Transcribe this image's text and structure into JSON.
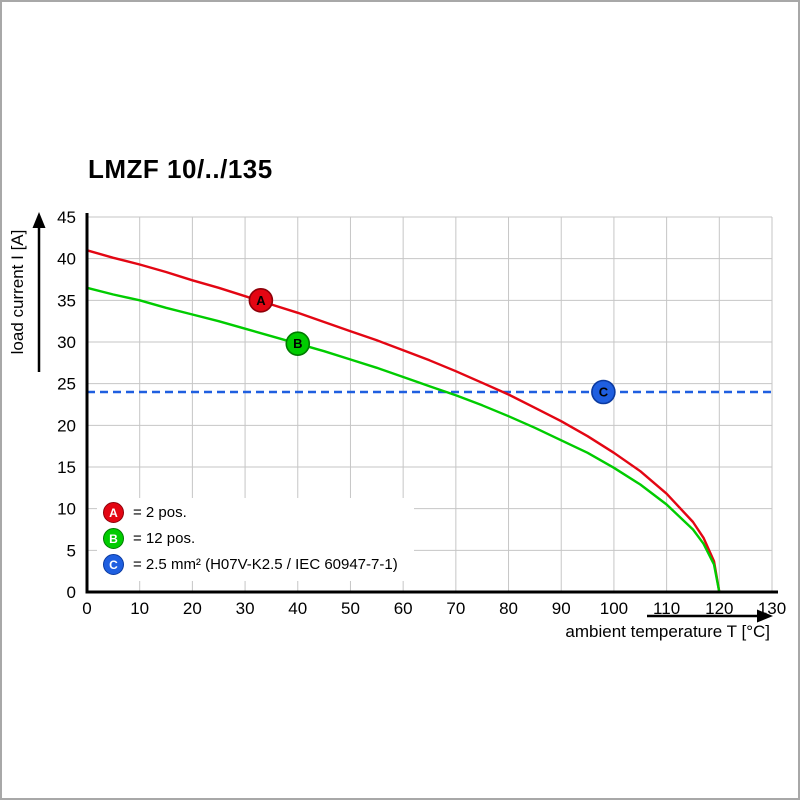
{
  "page": {
    "title": "LMZF 10/../135"
  },
  "chart_data": {
    "type": "line",
    "title": "LMZF 10/../135",
    "xlabel": "ambient temperature T [°C]",
    "ylabel": "load current I [A]",
    "xlim": [
      0,
      130
    ],
    "ylim": [
      0,
      45
    ],
    "x_ticks": [
      0,
      10,
      20,
      30,
      40,
      50,
      60,
      70,
      80,
      90,
      100,
      110,
      120,
      130
    ],
    "y_ticks": [
      0,
      5,
      10,
      15,
      20,
      25,
      30,
      35,
      40,
      45
    ],
    "grid": true,
    "grid_color": "#c6c6c6",
    "axis_color": "#000000",
    "legend_position": "lower-left-inside",
    "series": [
      {
        "name": "A",
        "label": "= 2 pos.",
        "color": "#e30613",
        "marker_stroke": "#8e0009",
        "marker": [
          33,
          35
        ],
        "points": [
          [
            0,
            41
          ],
          [
            5,
            40.1
          ],
          [
            10,
            39.3
          ],
          [
            15,
            38.4
          ],
          [
            20,
            37.4
          ],
          [
            25,
            36.5
          ],
          [
            30,
            35.5
          ],
          [
            35,
            34.5
          ],
          [
            40,
            33.5
          ],
          [
            45,
            32.4
          ],
          [
            50,
            31.3
          ],
          [
            55,
            30.2
          ],
          [
            60,
            29
          ],
          [
            65,
            27.8
          ],
          [
            70,
            26.5
          ],
          [
            75,
            25.1
          ],
          [
            80,
            23.7
          ],
          [
            85,
            22.1
          ],
          [
            90,
            20.5
          ],
          [
            95,
            18.7
          ],
          [
            100,
            16.7
          ],
          [
            105,
            14.5
          ],
          [
            110,
            11.8
          ],
          [
            115,
            8.4
          ],
          [
            117,
            6.5
          ],
          [
            119,
            3.7
          ],
          [
            120,
            0
          ]
        ]
      },
      {
        "name": "B",
        "label": "= 12 pos.",
        "color": "#00cc00",
        "marker_stroke": "#007a00",
        "marker": [
          40,
          29.8
        ],
        "points": [
          [
            0,
            36.5
          ],
          [
            5,
            35.7
          ],
          [
            10,
            35
          ],
          [
            15,
            34.1
          ],
          [
            20,
            33.3
          ],
          [
            25,
            32.5
          ],
          [
            30,
            31.6
          ],
          [
            35,
            30.7
          ],
          [
            40,
            29.8
          ],
          [
            45,
            28.9
          ],
          [
            50,
            27.9
          ],
          [
            55,
            26.9
          ],
          [
            60,
            25.8
          ],
          [
            65,
            24.7
          ],
          [
            70,
            23.6
          ],
          [
            75,
            22.4
          ],
          [
            80,
            21.1
          ],
          [
            85,
            19.7
          ],
          [
            90,
            18.2
          ],
          [
            95,
            16.7
          ],
          [
            100,
            14.9
          ],
          [
            105,
            12.9
          ],
          [
            110,
            10.5
          ],
          [
            115,
            7.5
          ],
          [
            117,
            5.8
          ],
          [
            119,
            3.3
          ],
          [
            120,
            0
          ]
        ]
      }
    ],
    "reference_line": {
      "name": "C",
      "label": "= 2.5 mm² (H07V-K2.5 / IEC 60947-7-1)",
      "color": "#1f5fe0",
      "marker_stroke": "#0b3aa0",
      "y": 24,
      "style": "dashed",
      "marker": [
        98,
        24
      ]
    }
  },
  "legend": {
    "items": [
      {
        "key": "A",
        "label": "= 2 pos.",
        "color": "#e30613",
        "border": "#8e0009"
      },
      {
        "key": "B",
        "label": "= 12 pos.",
        "color": "#00cc00",
        "border": "#007a00"
      },
      {
        "key": "C",
        "label": "= 2.5 mm² (H07V-K2.5 / IEC 60947-7-1)",
        "color": "#1f5fe0",
        "border": "#0b3aa0"
      }
    ]
  }
}
